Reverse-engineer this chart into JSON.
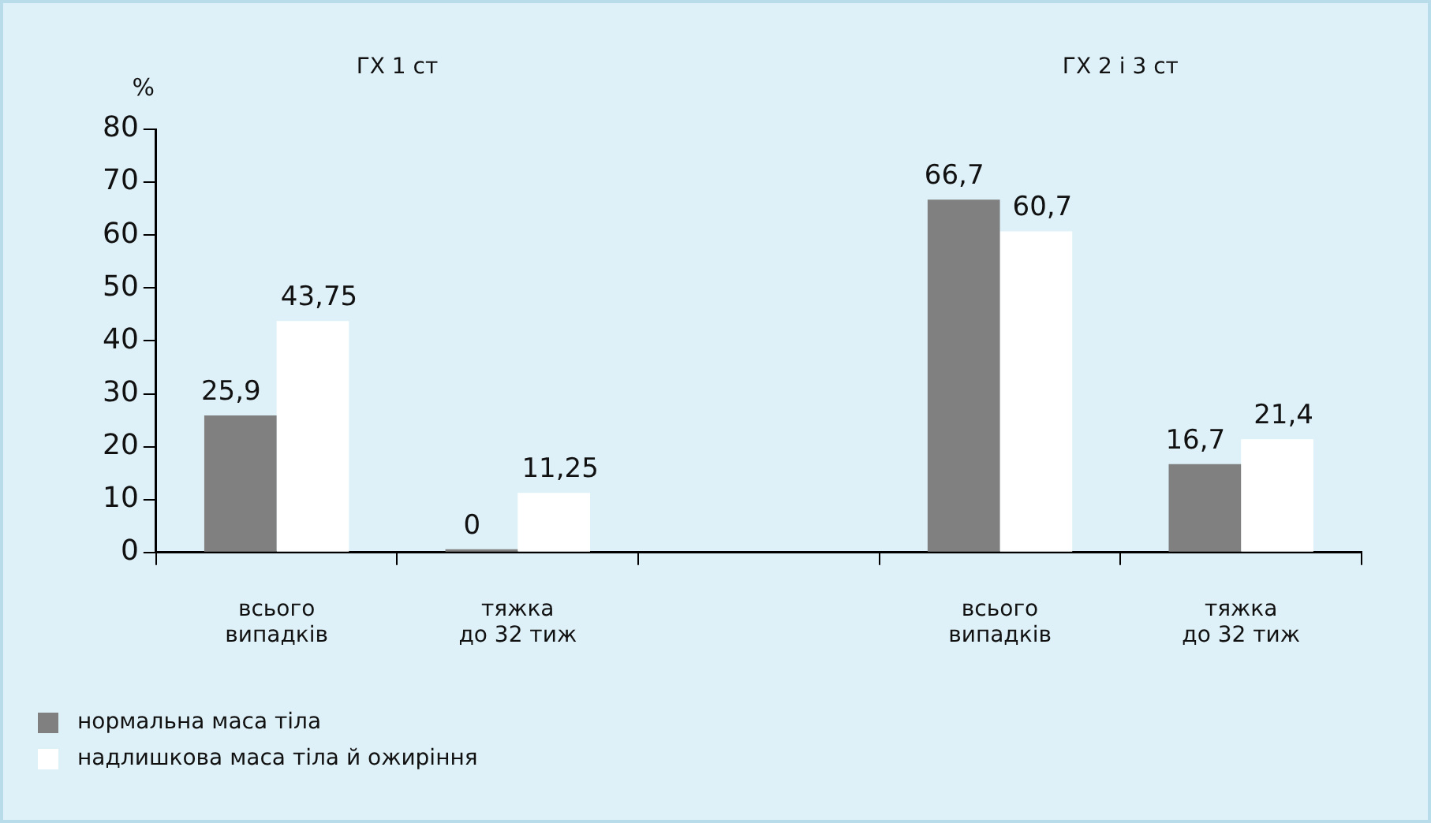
{
  "chart_data": {
    "type": "bar",
    "ylabel": "%",
    "annotations": [
      "ГХ 1 ст",
      "ГХ 2 і 3 ст"
    ],
    "categories": [
      "всього\nвипадків",
      "тяжка\nдо 32 тиж",
      null,
      "всього\nвипадків",
      "тяжка\nдо 32 тиж"
    ],
    "series": [
      {
        "name": "нормальна маса тіла",
        "color": "#808080",
        "values": [
          25.9,
          0,
          null,
          66.7,
          16.7
        ],
        "value_labels": [
          "25,9",
          "0",
          null,
          "66,7",
          "16,7"
        ]
      },
      {
        "name": "надлишкова маса тіла й ожиріння",
        "color": "#ffffff",
        "values": [
          43.75,
          11.25,
          null,
          60.7,
          21.4
        ],
        "value_labels": [
          "43,75",
          "11,25",
          null,
          "60,7",
          "21,4"
        ]
      }
    ],
    "ylim": [
      0,
      80
    ],
    "yticks": [
      0,
      10,
      20,
      30,
      40,
      50,
      60,
      70,
      80
    ],
    "grid": false,
    "legend": "bottom left"
  }
}
